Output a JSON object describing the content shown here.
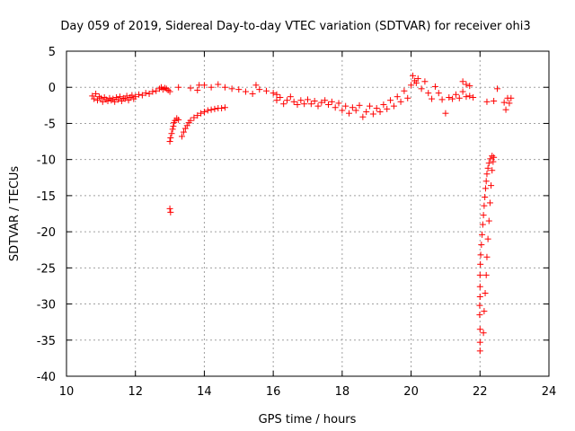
{
  "chart_data": {
    "type": "scatter",
    "title": "Day 059 of 2019, Sidereal Day-to-day VTEC variation (SDTVAR) for receiver ohi3",
    "xlabel": "GPS time / hours",
    "ylabel": "SDTVAR / TECUs",
    "xlim": [
      10,
      24
    ],
    "ylim": [
      -40,
      5
    ],
    "xticks": [
      10,
      12,
      14,
      16,
      18,
      20,
      22,
      24
    ],
    "yticks": [
      5,
      0,
      -5,
      -10,
      -15,
      -20,
      -25,
      -30,
      -35,
      -40
    ],
    "x_tick_labels": [
      "10",
      "12",
      "14",
      "16",
      "18",
      "20",
      "22",
      "24"
    ],
    "y_tick_labels": [
      "5",
      "0",
      "-5",
      "-10",
      "-15",
      "-20",
      "-25",
      "-30",
      "-35",
      "-40"
    ],
    "grid": true,
    "marker": "+",
    "marker_color": "#ff0000",
    "series": [
      {
        "name": "SDTVAR",
        "points": [
          [
            10.75,
            -1.2
          ],
          [
            10.8,
            -1.6
          ],
          [
            10.85,
            -0.9
          ],
          [
            10.9,
            -1.8
          ],
          [
            10.95,
            -1.3
          ],
          [
            11.0,
            -1.5
          ],
          [
            11.05,
            -2.0
          ],
          [
            11.1,
            -1.4
          ],
          [
            11.15,
            -1.7
          ],
          [
            11.2,
            -1.9
          ],
          [
            11.25,
            -1.5
          ],
          [
            11.3,
            -1.8
          ],
          [
            11.35,
            -1.6
          ],
          [
            11.4,
            -2.0
          ],
          [
            11.45,
            -1.4
          ],
          [
            11.5,
            -1.7
          ],
          [
            11.55,
            -1.3
          ],
          [
            11.6,
            -1.9
          ],
          [
            11.65,
            -1.5
          ],
          [
            11.7,
            -1.6
          ],
          [
            11.75,
            -1.2
          ],
          [
            11.8,
            -1.8
          ],
          [
            11.85,
            -1.4
          ],
          [
            11.9,
            -1.1
          ],
          [
            11.95,
            -1.6
          ],
          [
            12.0,
            -1.3
          ],
          [
            12.1,
            -1.0
          ],
          [
            12.2,
            -1.1
          ],
          [
            12.3,
            -0.8
          ],
          [
            12.4,
            -0.9
          ],
          [
            12.5,
            -0.6
          ],
          [
            12.6,
            -0.5
          ],
          [
            12.7,
            -0.2
          ],
          [
            12.75,
            0.0
          ],
          [
            12.8,
            -0.3
          ],
          [
            12.85,
            -0.1
          ],
          [
            12.9,
            -0.2
          ],
          [
            12.95,
            -0.4
          ],
          [
            13.0,
            -0.6
          ],
          [
            13.0,
            -7.5
          ],
          [
            13.02,
            -7.0
          ],
          [
            13.05,
            -6.4
          ],
          [
            13.08,
            -5.8
          ],
          [
            13.1,
            -5.4
          ],
          [
            13.12,
            -4.9
          ],
          [
            13.15,
            -4.6
          ],
          [
            13.2,
            -4.3
          ],
          [
            13.25,
            -4.5
          ],
          [
            13.0,
            -16.8
          ],
          [
            13.02,
            -17.3
          ],
          [
            13.25,
            0.0
          ],
          [
            13.6,
            -0.1
          ],
          [
            13.8,
            -0.4
          ],
          [
            13.85,
            0.3
          ],
          [
            14.0,
            0.3
          ],
          [
            14.2,
            0.0
          ],
          [
            14.4,
            0.4
          ],
          [
            14.6,
            0.0
          ],
          [
            14.8,
            -0.2
          ],
          [
            15.0,
            -0.3
          ],
          [
            15.2,
            -0.6
          ],
          [
            15.4,
            -0.9
          ],
          [
            15.5,
            0.3
          ],
          [
            15.6,
            -0.3
          ],
          [
            15.8,
            -0.5
          ],
          [
            16.0,
            -0.8
          ],
          [
            16.1,
            -1.0
          ],
          [
            13.35,
            -6.8
          ],
          [
            13.4,
            -6.2
          ],
          [
            13.45,
            -5.7
          ],
          [
            13.5,
            -5.3
          ],
          [
            13.55,
            -4.9
          ],
          [
            13.6,
            -4.6
          ],
          [
            13.7,
            -4.2
          ],
          [
            13.8,
            -3.9
          ],
          [
            13.9,
            -3.6
          ],
          [
            14.0,
            -3.4
          ],
          [
            14.1,
            -3.2
          ],
          [
            14.2,
            -3.1
          ],
          [
            14.3,
            -3.0
          ],
          [
            14.4,
            -2.9
          ],
          [
            14.5,
            -2.9
          ],
          [
            14.6,
            -2.8
          ],
          [
            16.1,
            -1.8
          ],
          [
            16.2,
            -1.4
          ],
          [
            16.3,
            -2.3
          ],
          [
            16.4,
            -1.8
          ],
          [
            16.5,
            -1.3
          ],
          [
            16.6,
            -2.0
          ],
          [
            16.7,
            -2.4
          ],
          [
            16.8,
            -1.8
          ],
          [
            16.9,
            -2.3
          ],
          [
            17.0,
            -1.7
          ],
          [
            17.1,
            -2.3
          ],
          [
            17.2,
            -1.9
          ],
          [
            17.3,
            -2.6
          ],
          [
            17.4,
            -2.1
          ],
          [
            17.5,
            -1.8
          ],
          [
            17.6,
            -2.4
          ],
          [
            17.7,
            -2.0
          ],
          [
            17.8,
            -2.8
          ],
          [
            17.9,
            -2.2
          ],
          [
            18.0,
            -3.2
          ],
          [
            18.1,
            -2.6
          ],
          [
            18.2,
            -3.6
          ],
          [
            18.3,
            -2.8
          ],
          [
            18.4,
            -3.2
          ],
          [
            18.5,
            -2.5
          ],
          [
            18.6,
            -4.1
          ],
          [
            18.7,
            -3.4
          ],
          [
            18.8,
            -2.6
          ],
          [
            18.9,
            -3.7
          ],
          [
            19.0,
            -2.9
          ],
          [
            19.1,
            -3.4
          ],
          [
            19.2,
            -2.4
          ],
          [
            19.3,
            -3.0
          ],
          [
            19.4,
            -1.8
          ],
          [
            19.5,
            -2.6
          ],
          [
            19.6,
            -1.3
          ],
          [
            19.7,
            -2.0
          ],
          [
            19.8,
            -0.5
          ],
          [
            19.9,
            -1.5
          ],
          [
            20.0,
            0.3
          ],
          [
            20.05,
            1.6
          ],
          [
            20.1,
            0.9
          ],
          [
            20.15,
            0.6
          ],
          [
            20.2,
            1.2
          ],
          [
            20.3,
            -0.2
          ],
          [
            20.4,
            0.8
          ],
          [
            20.5,
            -0.8
          ],
          [
            20.6,
            -1.6
          ],
          [
            20.7,
            0.1
          ],
          [
            20.8,
            -0.8
          ],
          [
            20.9,
            -1.7
          ],
          [
            21.0,
            -3.6
          ],
          [
            21.1,
            -1.4
          ],
          [
            21.2,
            -1.6
          ],
          [
            21.3,
            -1.0
          ],
          [
            21.4,
            -1.5
          ],
          [
            21.5,
            -0.6
          ],
          [
            21.6,
            -1.3
          ],
          [
            21.7,
            -1.2
          ],
          [
            21.8,
            -1.4
          ],
          [
            21.5,
            0.8
          ],
          [
            21.6,
            0.4
          ],
          [
            21.7,
            0.2
          ],
          [
            22.2,
            -2.0
          ],
          [
            22.4,
            -1.9
          ],
          [
            22.5,
            -0.2
          ],
          [
            22.7,
            -2.1
          ],
          [
            22.75,
            -3.1
          ],
          [
            22.8,
            -1.5
          ],
          [
            22.85,
            -2.2
          ],
          [
            22.9,
            -1.5
          ],
          [
            22.0,
            -36.5
          ],
          [
            22.0,
            -35.3
          ],
          [
            22.0,
            -33.5
          ],
          [
            21.99,
            -31.5
          ],
          [
            21.99,
            -30.2
          ],
          [
            22.0,
            -29.0
          ],
          [
            22.0,
            -27.6
          ],
          [
            22.0,
            -26.0
          ],
          [
            22.01,
            -24.5
          ],
          [
            22.02,
            -23.2
          ],
          [
            22.04,
            -21.8
          ],
          [
            22.06,
            -20.4
          ],
          [
            22.08,
            -19.0
          ],
          [
            22.1,
            -17.7
          ],
          [
            22.12,
            -16.4
          ],
          [
            22.14,
            -15.2
          ],
          [
            22.16,
            -14.0
          ],
          [
            22.18,
            -13.0
          ],
          [
            22.2,
            -12.0
          ],
          [
            22.23,
            -11.2
          ],
          [
            22.26,
            -10.5
          ],
          [
            22.3,
            -9.9
          ],
          [
            22.35,
            -9.5
          ],
          [
            22.4,
            -9.7
          ],
          [
            22.1,
            -34.0
          ],
          [
            22.12,
            -31.0
          ],
          [
            22.15,
            -28.5
          ],
          [
            22.18,
            -26.0
          ],
          [
            22.2,
            -23.5
          ],
          [
            22.23,
            -21.0
          ],
          [
            22.26,
            -18.5
          ],
          [
            22.29,
            -16.0
          ],
          [
            22.32,
            -13.6
          ],
          [
            22.35,
            -11.5
          ],
          [
            22.38,
            -10.3
          ]
        ]
      }
    ]
  }
}
